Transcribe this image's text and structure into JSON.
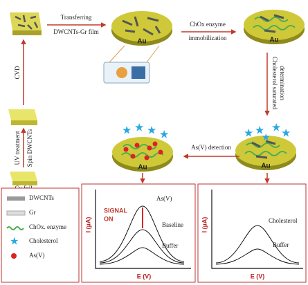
{
  "steps": {
    "cu_foil": "Cu foil",
    "uv": "UV treatment",
    "spin": "Spin DWCNTs",
    "cvd": "CVD",
    "transfer_top": "Transferring",
    "transfer_bottom": "DWCNTs-Gr film",
    "chox_top": "ChOx enzyme",
    "chox_bottom": "immobilization",
    "chol_1": "Cholesterol saturated",
    "chol_2": "determination",
    "asv": "As(V) detection"
  },
  "electrode_label": "Au",
  "legend": [
    "DWCNTs",
    "Gr",
    "ChOx. enzyme",
    "Cholesterol",
    "As(V)"
  ],
  "plot_left": {
    "y_label": "I (µA)",
    "x_label": "E (V)",
    "signal": [
      "SIGNAL",
      "ON"
    ],
    "curves": [
      "As(V)",
      "Baseline",
      "Buffer"
    ]
  },
  "plot_right": {
    "y_label": "I (µA)",
    "x_label": "E (V)",
    "curves": [
      "Cholesterol",
      "Buffer"
    ]
  }
}
